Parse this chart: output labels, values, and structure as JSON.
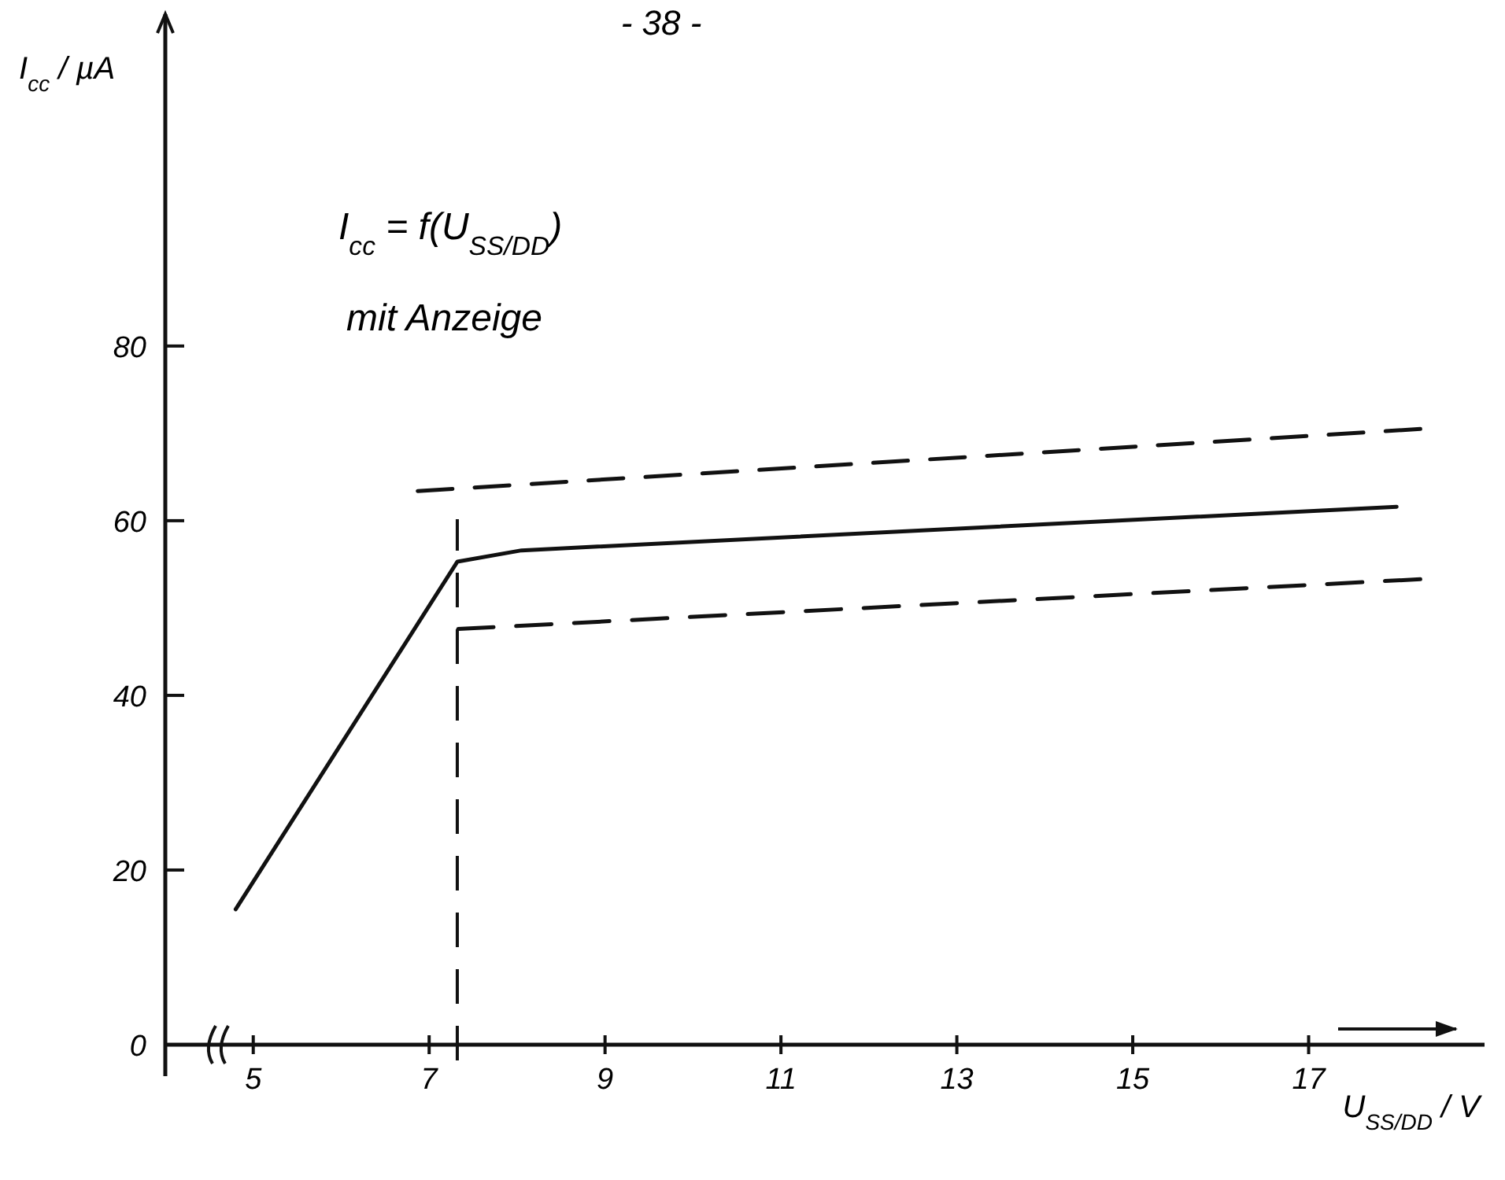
{
  "chart_data": {
    "type": "line",
    "xlabel": "U$_{SS/DD}$ / V",
    "ylabel": "I$_{cc}$ / µA",
    "annotations": [
      "- 38 -",
      "I$_{cc}$ = f(U$_{SS/DD}$)",
      "mit Anzeige"
    ],
    "xlim": [
      4,
      19
    ],
    "ylim": [
      0,
      118
    ],
    "xticks": [
      5,
      7,
      9,
      11,
      13,
      15,
      17
    ],
    "yticks": [
      0,
      20,
      40,
      60,
      80
    ],
    "series": [
      {
        "color": "#111111",
        "line_style": "solid",
        "x": [
          4.8,
          7.32,
          8.05,
          18.0
        ],
        "values": [
          15.5,
          55.3,
          56.6,
          61.6
        ]
      },
      {
        "color": "#111111",
        "line_style": "dashed",
        "x": [
          6.87,
          18.27
        ],
        "values": [
          63.4,
          70.5
        ]
      },
      {
        "color": "#111111",
        "line_style": "dashed",
        "x": [
          7.33,
          18.27
        ],
        "values": [
          47.6,
          53.3
        ]
      }
    ],
    "ref_lines": [
      {
        "axis": "x",
        "value": 7.32,
        "line_style": "dashed",
        "color": "#111111"
      }
    ],
    "grid": false,
    "marker": "none"
  }
}
